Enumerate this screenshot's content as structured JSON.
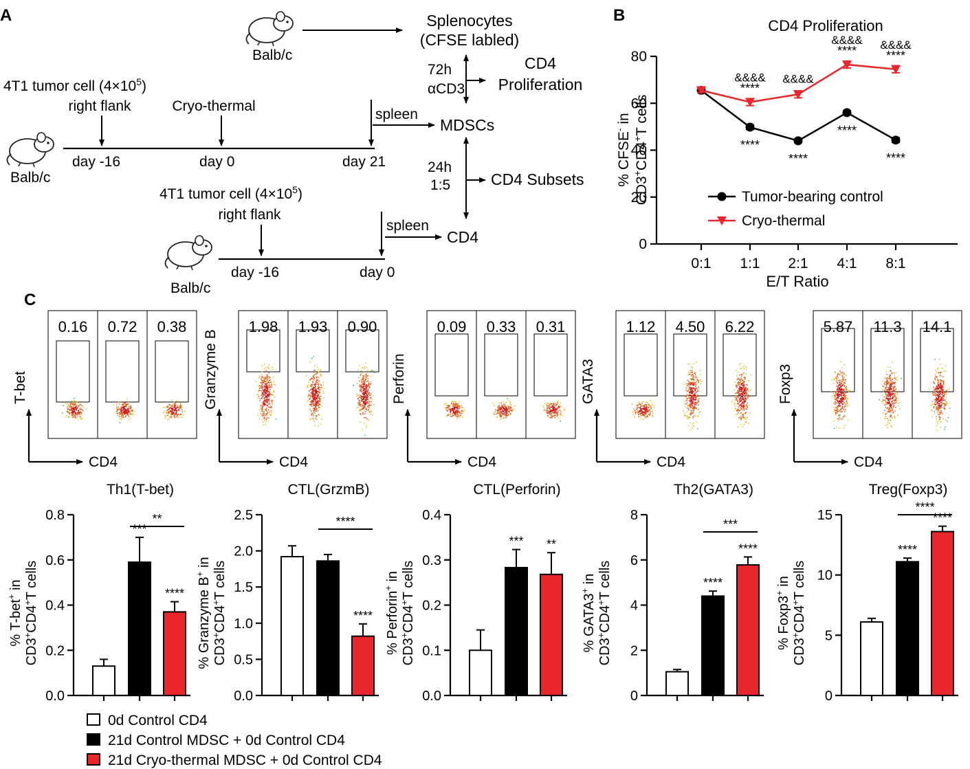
{
  "panel_labels": {
    "a": "A",
    "b": "B",
    "c": "C"
  },
  "schematic": {
    "mouse_label": "Balb/c",
    "splenocytes": "Splenocytes",
    "cfse_labled": "(CFSE labled)",
    "tumor_prefix": "4T1 tumor cell (4×10",
    "tumor_exp": "5",
    "tumor_suffix": ")",
    "right_flank": "right flank",
    "cryo_thermal": "Cryo-thermal",
    "day_m16": "day -16",
    "day_0": "day 0",
    "day_21": "day 21",
    "spleen": "spleen",
    "mdscs": "MDSCs",
    "t72h": "72h",
    "acd3": "αCD3",
    "cd4_prolif_1": "CD4",
    "cd4_prolif_2": "Proliferation",
    "t24h": "24h",
    "ratio_15": "1:5",
    "cd4_subsets": "CD4 Subsets",
    "cd4": "CD4"
  },
  "colors": {
    "red": "#e8262b",
    "black": "#000000",
    "white": "#ffffff"
  },
  "flow": {
    "x_label": "CD4",
    "panels": [
      {
        "marker": "T-bet",
        "values": [
          "0.16",
          "0.72",
          "0.38"
        ]
      },
      {
        "marker": "Granzyme B",
        "values": [
          "1.98",
          "1.93",
          "0.90"
        ]
      },
      {
        "marker": "Perforin",
        "values": [
          "0.09",
          "0.33",
          "0.31"
        ]
      },
      {
        "marker": "GATA3",
        "values": [
          "1.12",
          "4.50",
          "6.22"
        ]
      },
      {
        "marker": "Foxp3",
        "values": [
          "5.87",
          "11.3",
          "14.1"
        ]
      }
    ]
  },
  "legend": {
    "items": [
      {
        "label": "0d Control CD4",
        "color": "#ffffff"
      },
      {
        "label": "21d Control MDSC + 0d Control CD4",
        "color": "#000000"
      },
      {
        "label": "21d Cryo-thermal MDSC + 0d Control CD4",
        "color": "#e8262b"
      }
    ]
  },
  "chart_data": [
    {
      "type": "line",
      "title": "CD4 Proliferation",
      "xlabel": "E/T Ratio",
      "ylabel_line1": "% CFSE",
      "ylabel_line1_sup": "-",
      "ylabel_line1_suffix": " in",
      "ylabel_line2": "CD3+CD4+T cells",
      "categories": [
        "0:1",
        "1:1",
        "2:1",
        "4:1",
        "8:1"
      ],
      "ylim": [
        0,
        80
      ],
      "yticks": [
        0,
        20,
        40,
        60,
        80
      ],
      "series": [
        {
          "name": "Tumor-bearing control",
          "color": "#000000",
          "marker": "circle",
          "values": [
            65.5,
            49.8,
            44,
            56,
            44.3
          ],
          "errors": [
            0.8,
            1,
            0.8,
            0.8,
            1
          ],
          "annotations": [
            "",
            "****",
            "****",
            "****",
            "****"
          ]
        },
        {
          "name": "Cryo-thermal",
          "color": "#e8262b",
          "marker": "triangle-down",
          "values": [
            65.5,
            60.5,
            63.8,
            76.5,
            74.5
          ],
          "errors": [
            0.8,
            1.5,
            1.5,
            1.5,
            1.5
          ],
          "annotations": [
            "",
            "****",
            "",
            "****",
            "****"
          ],
          "annotations2": [
            "",
            "&&&&",
            "&&&&",
            "&&&&",
            "&&&&"
          ]
        }
      ]
    },
    {
      "type": "bar",
      "title": "Th1(T-bet)",
      "ylabel_main": "% T-bet",
      "ylabel_sup": "+",
      "ylabel_end": " in",
      "ylim": [
        0,
        0.8
      ],
      "yticks": [
        "0.0",
        "0.2",
        "0.4",
        "0.6",
        "0.8"
      ],
      "values": [
        0.13,
        0.59,
        0.37
      ],
      "errors": [
        0.03,
        0.11,
        0.045
      ],
      "stars": [
        "",
        "***",
        "****"
      ],
      "bracket": {
        "from": 1,
        "to": 2,
        "label": "**"
      }
    },
    {
      "type": "bar",
      "title": "CTL(GrzmB)",
      "ylabel_main": "% Granzyme B",
      "ylabel_sup": "+",
      "ylabel_end": " in",
      "ylim": [
        0,
        2.5
      ],
      "yticks": [
        "0.0",
        "0.5",
        "1.0",
        "1.5",
        "2.0",
        "2.5"
      ],
      "values": [
        1.92,
        1.86,
        0.82
      ],
      "errors": [
        0.15,
        0.09,
        0.17
      ],
      "stars": [
        "",
        "",
        "****"
      ],
      "bracket": {
        "from": 1,
        "to": 2,
        "label": "****"
      }
    },
    {
      "type": "bar",
      "title": "CTL(Perforin)",
      "ylabel_main": "% Perforin",
      "ylabel_sup": "+",
      "ylabel_end": " in",
      "ylim": [
        0,
        0.4
      ],
      "yticks": [
        "0.0",
        "0.1",
        "0.2",
        "0.3",
        "0.4"
      ],
      "values": [
        0.1,
        0.283,
        0.268
      ],
      "errors": [
        0.045,
        0.04,
        0.048
      ],
      "stars": [
        "",
        "***",
        "**"
      ],
      "bracket": null
    },
    {
      "type": "bar",
      "title": "Th2(GATA3)",
      "ylabel_main": "% GATA3",
      "ylabel_sup": "+",
      "ylabel_end": " in",
      "ylim": [
        0,
        8
      ],
      "yticks": [
        "0",
        "2",
        "4",
        "6",
        "8"
      ],
      "values": [
        1.05,
        4.4,
        5.78
      ],
      "errors": [
        0.1,
        0.22,
        0.35
      ],
      "stars": [
        "",
        "****",
        "****"
      ],
      "bracket": {
        "from": 1,
        "to": 2,
        "label": "***"
      }
    },
    {
      "type": "bar",
      "title": "Treg(Foxp3)",
      "ylabel_main": "% Foxp3",
      "ylabel_sup": "+",
      "ylabel_end": " in",
      "ylim": [
        0,
        15
      ],
      "yticks": [
        "0",
        "5",
        "10",
        "15"
      ],
      "values": [
        6.1,
        11.1,
        13.6
      ],
      "errors": [
        0.3,
        0.3,
        0.45
      ],
      "stars": [
        "",
        "****",
        "****"
      ],
      "bracket": {
        "from": 1,
        "to": 2,
        "label": "****"
      }
    }
  ]
}
